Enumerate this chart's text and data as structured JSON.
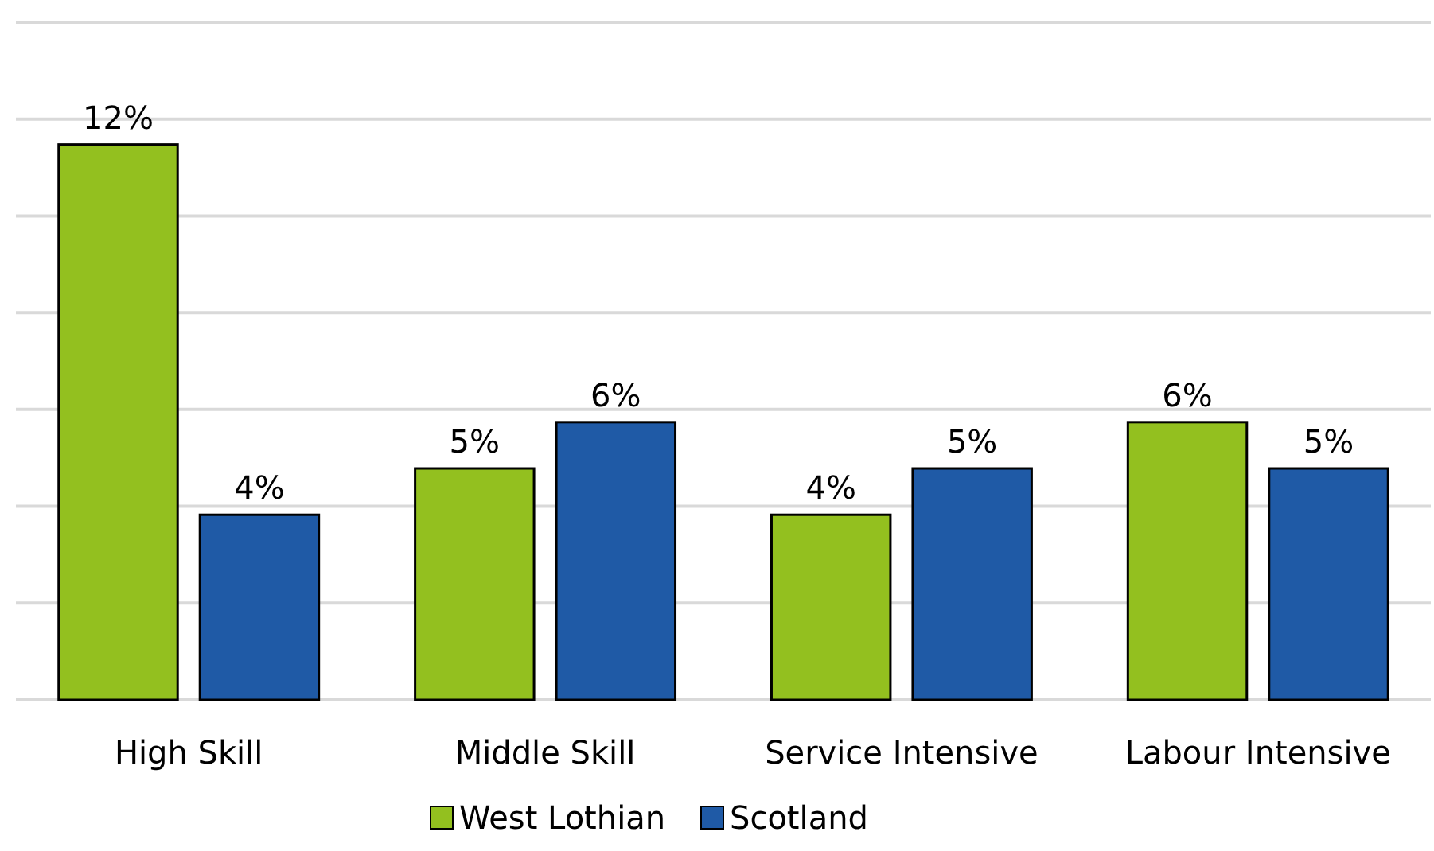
{
  "chart_data": {
    "type": "bar",
    "categories": [
      "High Skill",
      "Middle Skill",
      "Service Intensive",
      "Labour Intensive"
    ],
    "series": [
      {
        "name": "West Lothian",
        "color": "#93c01f",
        "values": [
          12,
          5,
          4,
          6
        ],
        "value_labels": [
          "12%",
          "5%",
          "4%",
          "6%"
        ]
      },
      {
        "name": "Scotland",
        "color": "#1f5aa6",
        "values": [
          4,
          6,
          5,
          5
        ],
        "value_labels": [
          "4%",
          "6%",
          "5%",
          "5%"
        ]
      }
    ],
    "tick_labels": "x",
    "grid": "y",
    "legend": "bottom"
  }
}
